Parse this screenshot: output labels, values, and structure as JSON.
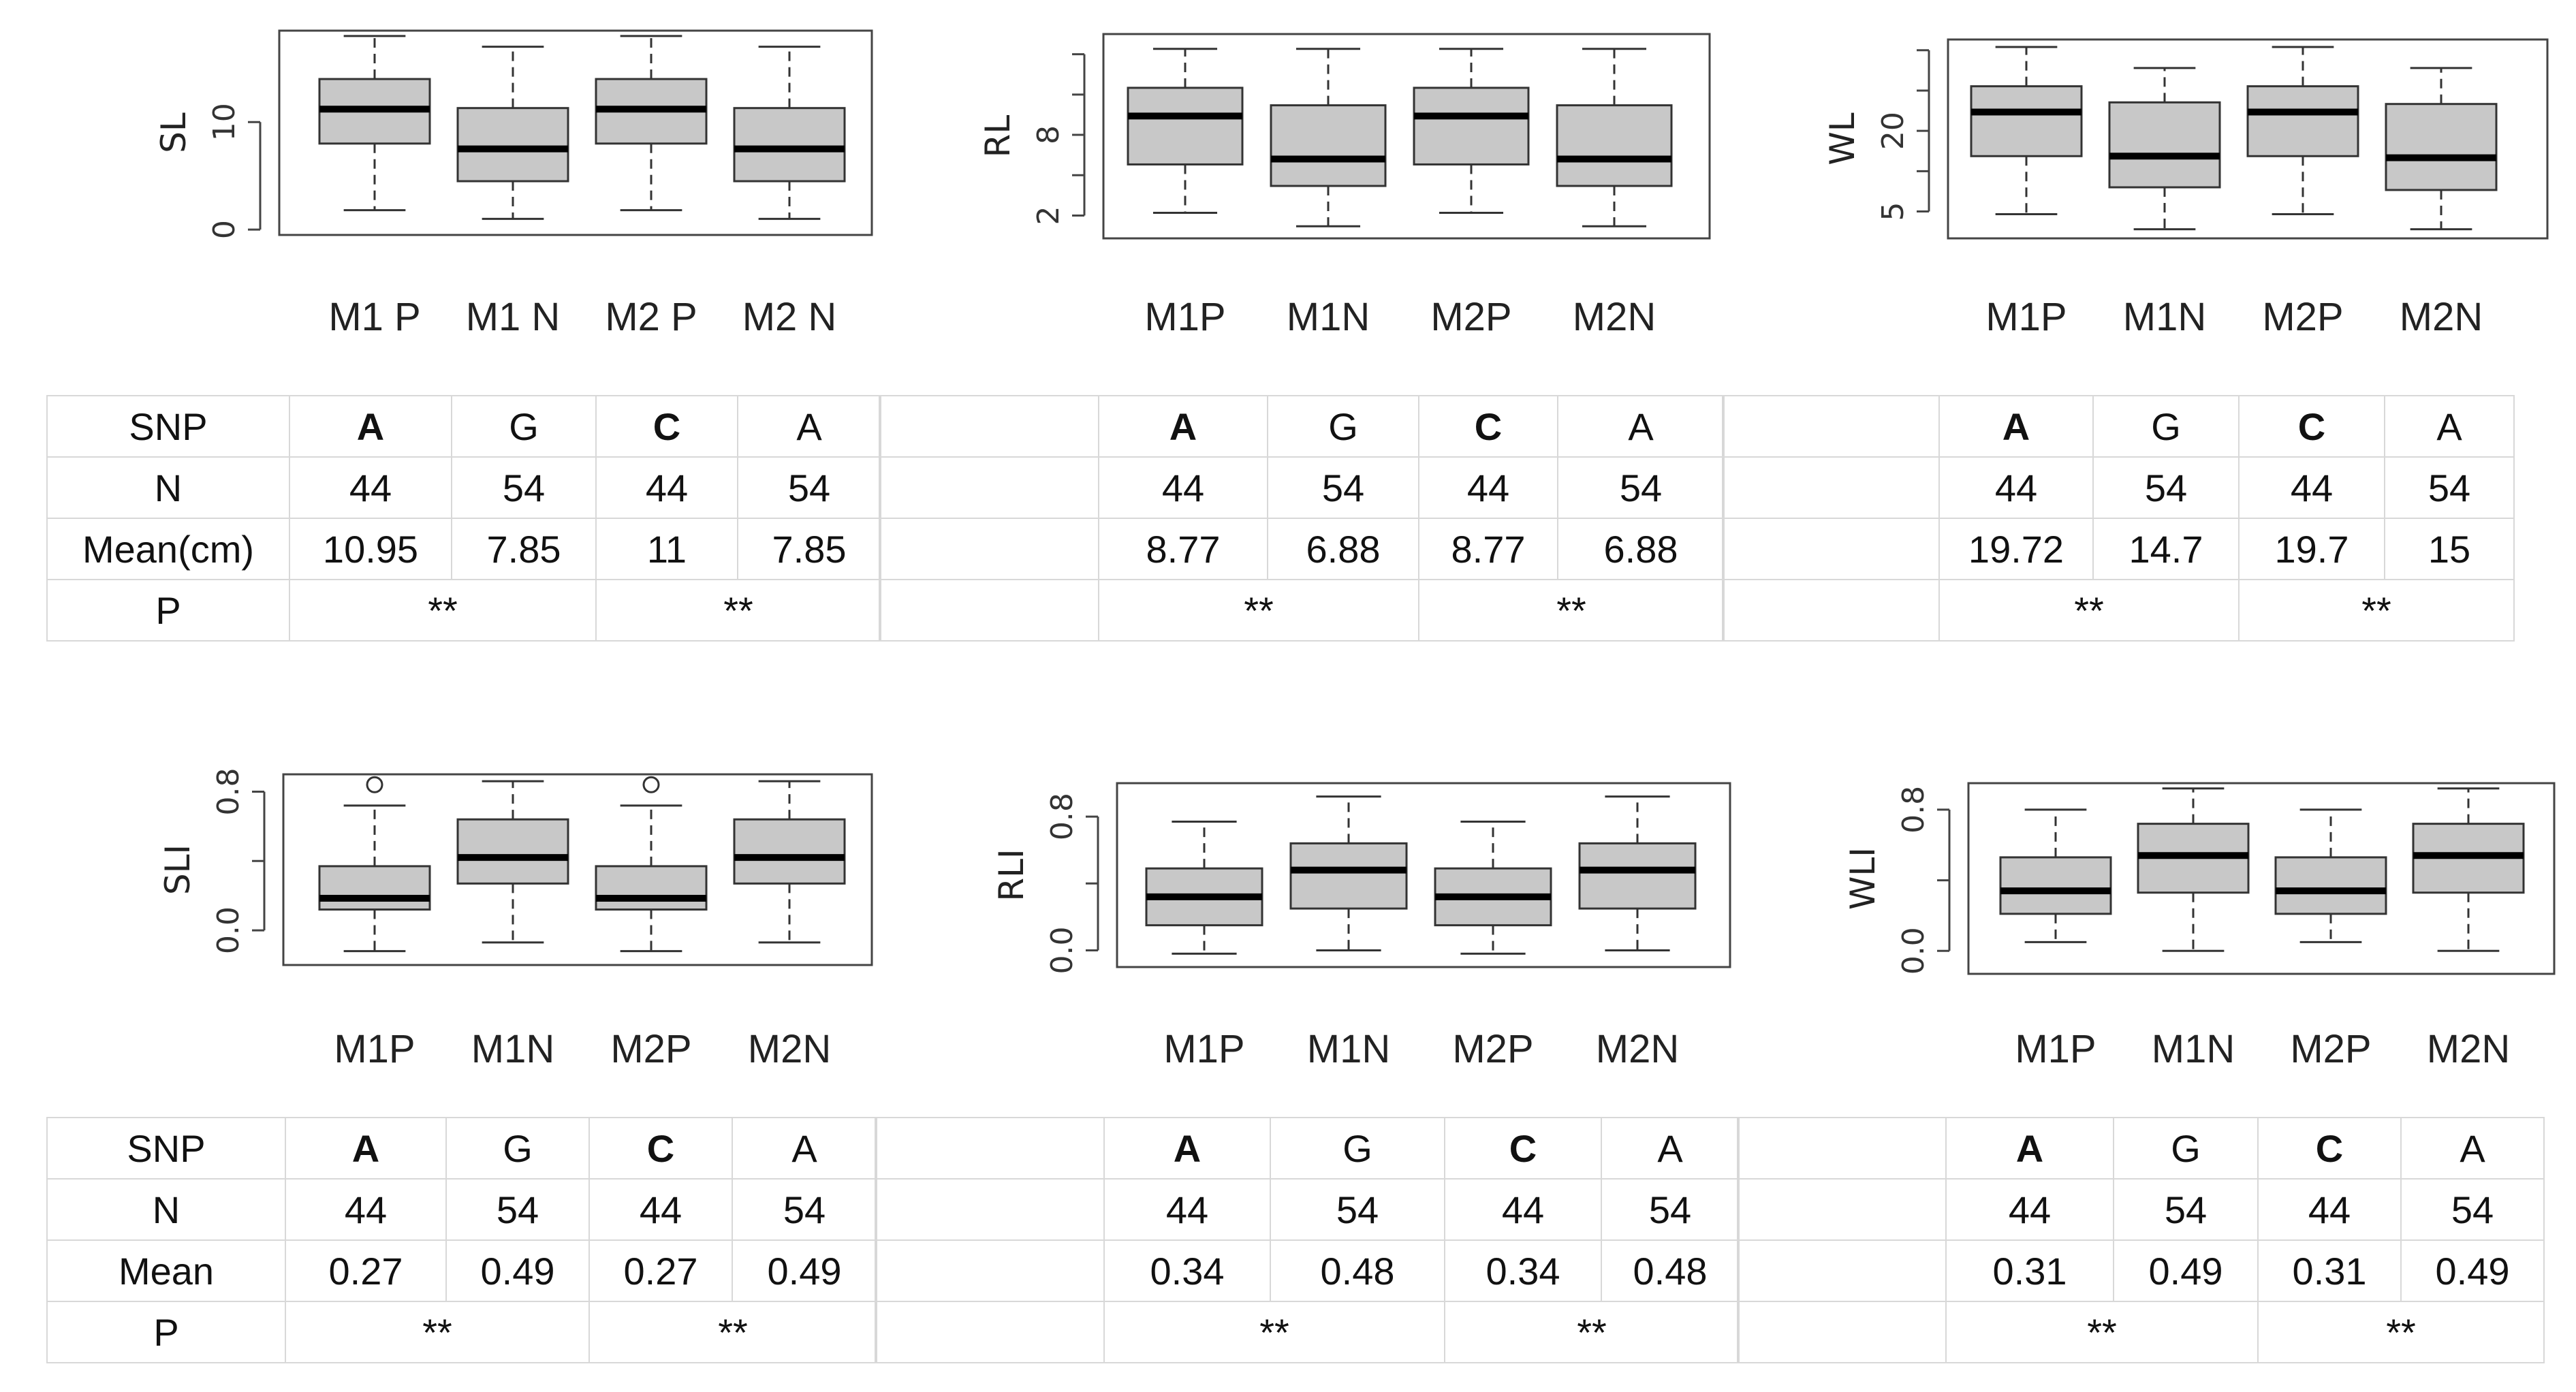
{
  "chart_data": [
    {
      "type": "box",
      "ylabel": "SL",
      "categories": [
        "M1 P",
        "M1 N",
        "M2 P",
        "M2 N"
      ],
      "ylim": [
        -0.5,
        18.5
      ],
      "yticks": [
        0,
        10
      ],
      "ytick_labels": [
        "0",
        "10"
      ],
      "boxes": [
        {
          "min": 1.8,
          "q1": 8,
          "median": 11.2,
          "q3": 14,
          "max": 18,
          "outliers": []
        },
        {
          "min": 1,
          "q1": 4.5,
          "median": 7.5,
          "q3": 11.3,
          "max": 17,
          "outliers": []
        },
        {
          "min": 1.8,
          "q1": 8,
          "median": 11.2,
          "q3": 14,
          "max": 18,
          "outliers": []
        },
        {
          "min": 1,
          "q1": 4.5,
          "median": 7.5,
          "q3": 11.3,
          "max": 17,
          "outliers": []
        }
      ]
    },
    {
      "type": "box",
      "ylabel": "RL",
      "categories": [
        "M1P",
        "M1N",
        "M2P",
        "M2N"
      ],
      "ylim": [
        0.3,
        15.5
      ],
      "yticks": [
        2,
        8
      ],
      "ytick_labels": [
        "2",
        "8"
      ],
      "minor_ticks": [
        5,
        11,
        14
      ],
      "boxes": [
        {
          "min": 2.2,
          "q1": 5.8,
          "median": 9.4,
          "q3": 11.5,
          "max": 14.4,
          "outliers": []
        },
        {
          "min": 1.2,
          "q1": 4.2,
          "median": 6.2,
          "q3": 10.2,
          "max": 14.4,
          "outliers": []
        },
        {
          "min": 2.2,
          "q1": 5.8,
          "median": 9.4,
          "q3": 11.5,
          "max": 14.4,
          "outliers": []
        },
        {
          "min": 1.2,
          "q1": 4.2,
          "median": 6.2,
          "q3": 10.2,
          "max": 14.4,
          "outliers": []
        }
      ]
    },
    {
      "type": "box",
      "ylabel": "WL",
      "categories": [
        "M1P",
        "M1N",
        "M2P",
        "M2N"
      ],
      "ylim": [
        0,
        37
      ],
      "yticks": [
        5,
        20
      ],
      "ytick_labels": [
        "5",
        "20"
      ],
      "minor_ticks": [
        12.5,
        27.5,
        35
      ],
      "boxes": [
        {
          "min": 4.5,
          "q1": 15.3,
          "median": 23.5,
          "q3": 28.3,
          "max": 35.6,
          "outliers": []
        },
        {
          "min": 1.7,
          "q1": 9.5,
          "median": 15.3,
          "q3": 25.3,
          "max": 31.7,
          "outliers": []
        },
        {
          "min": 4.5,
          "q1": 15.3,
          "median": 23.5,
          "q3": 28.3,
          "max": 35.6,
          "outliers": []
        },
        {
          "min": 1.7,
          "q1": 9,
          "median": 15,
          "q3": 25,
          "max": 31.7,
          "outliers": []
        }
      ]
    },
    {
      "type": "box",
      "ylabel": "SLI",
      "categories": [
        "M1P",
        "M1N",
        "M2P",
        "M2N"
      ],
      "ylim": [
        -0.2,
        0.9
      ],
      "yticks": [
        0.0,
        0.8
      ],
      "ytick_labels": [
        "0.0",
        "0.8"
      ],
      "minor_ticks": [
        0.4
      ],
      "boxes": [
        {
          "min": -0.12,
          "q1": 0.12,
          "median": 0.185,
          "q3": 0.37,
          "max": 0.72,
          "outliers": [
            0.84
          ]
        },
        {
          "min": -0.07,
          "q1": 0.27,
          "median": 0.42,
          "q3": 0.64,
          "max": 0.86,
          "outliers": []
        },
        {
          "min": -0.12,
          "q1": 0.12,
          "median": 0.185,
          "q3": 0.37,
          "max": 0.72,
          "outliers": [
            0.84
          ]
        },
        {
          "min": -0.07,
          "q1": 0.27,
          "median": 0.42,
          "q3": 0.64,
          "max": 0.86,
          "outliers": []
        }
      ]
    },
    {
      "type": "box",
      "ylabel": "RLI",
      "categories": [
        "M1P",
        "M1N",
        "M2P",
        "M2N"
      ],
      "ylim": [
        -0.1,
        1.0
      ],
      "yticks": [
        0.0,
        0.8
      ],
      "ytick_labels": [
        "0.0",
        "0.8"
      ],
      "minor_ticks": [
        0.4
      ],
      "boxes": [
        {
          "min": -0.02,
          "q1": 0.15,
          "median": 0.32,
          "q3": 0.49,
          "max": 0.77,
          "outliers": []
        },
        {
          "min": 0.0,
          "q1": 0.25,
          "median": 0.48,
          "q3": 0.64,
          "max": 0.92,
          "outliers": []
        },
        {
          "min": -0.02,
          "q1": 0.15,
          "median": 0.32,
          "q3": 0.49,
          "max": 0.77,
          "outliers": []
        },
        {
          "min": 0.0,
          "q1": 0.25,
          "median": 0.48,
          "q3": 0.64,
          "max": 0.92,
          "outliers": []
        }
      ]
    },
    {
      "type": "box",
      "ylabel": "WLI",
      "categories": [
        "M1P",
        "M1N",
        "M2P",
        "M2N"
      ],
      "ylim": [
        -0.13,
        0.95
      ],
      "yticks": [
        0.0,
        0.8
      ],
      "ytick_labels": [
        "0.0",
        "0.8"
      ],
      "minor_ticks": [
        0.4
      ],
      "boxes": [
        {
          "min": 0.05,
          "q1": 0.21,
          "median": 0.34,
          "q3": 0.53,
          "max": 0.8,
          "outliers": []
        },
        {
          "min": 0.0,
          "q1": 0.33,
          "median": 0.54,
          "q3": 0.72,
          "max": 0.92,
          "outliers": []
        },
        {
          "min": 0.05,
          "q1": 0.21,
          "median": 0.34,
          "q3": 0.53,
          "max": 0.8,
          "outliers": []
        },
        {
          "min": 0.0,
          "q1": 0.33,
          "median": 0.54,
          "q3": 0.72,
          "max": 0.92,
          "outliers": []
        }
      ]
    }
  ],
  "tables": {
    "top": {
      "labels": {
        "snp": "SNP",
        "n": "N",
        "mean": "Mean(cm)",
        "p": "P"
      },
      "sl": {
        "snp": [
          "A",
          "G",
          "C",
          "A"
        ],
        "n": [
          "44",
          "54",
          "44",
          "54"
        ],
        "mean": [
          "10.95",
          "7.85",
          "11",
          "7.85"
        ],
        "p": [
          "**",
          "**"
        ]
      },
      "rl": {
        "snp": [
          "A",
          "G",
          "C",
          "A"
        ],
        "n": [
          "44",
          "54",
          "44",
          "54"
        ],
        "mean": [
          "8.77",
          "6.88",
          "8.77",
          "6.88"
        ],
        "p": [
          "**",
          "**"
        ]
      },
      "wl": {
        "snp": [
          "A",
          "G",
          "C",
          "A"
        ],
        "n": [
          "44",
          "54",
          "44",
          "54"
        ],
        "mean": [
          "19.72",
          "14.7",
          "19.7",
          "15"
        ],
        "p": [
          "**",
          "**"
        ]
      }
    },
    "bottom": {
      "labels": {
        "snp": "SNP",
        "n": "N",
        "mean": "Mean",
        "p": "P"
      },
      "sli": {
        "snp": [
          "A",
          "G",
          "C",
          "A"
        ],
        "n": [
          "44",
          "54",
          "44",
          "54"
        ],
        "mean": [
          "0.27",
          "0.49",
          "0.27",
          "0.49"
        ],
        "p": [
          "**",
          "**"
        ]
      },
      "rli": {
        "snp": [
          "A",
          "G",
          "C",
          "A"
        ],
        "n": [
          "44",
          "54",
          "44",
          "54"
        ],
        "mean": [
          "0.34",
          "0.48",
          "0.34",
          "0.48"
        ],
        "p": [
          "**",
          "**"
        ]
      },
      "wli": {
        "snp": [
          "A",
          "G",
          "C",
          "A"
        ],
        "n": [
          "44",
          "54",
          "44",
          "54"
        ],
        "mean": [
          "0.31",
          "0.49",
          "0.31",
          "0.49"
        ],
        "p": [
          "**",
          "**"
        ]
      }
    }
  }
}
